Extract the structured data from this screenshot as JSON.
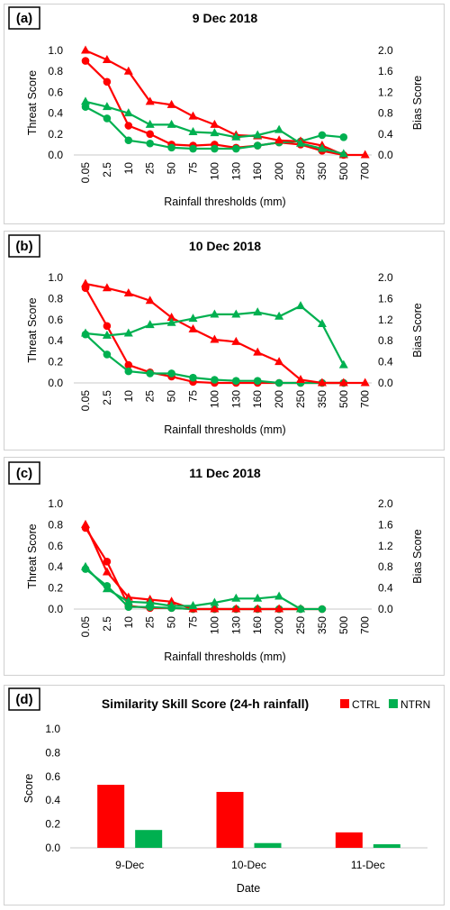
{
  "colors": {
    "ctrl": "#ff0000",
    "ntrn": "#00b050"
  },
  "chart_data": [
    {
      "panel": "(a)",
      "type": "line",
      "title": "9 Dec 2018",
      "xlabel": "Rainfall thresholds (mm)",
      "ylabel_left": "Threat Score",
      "ylabel_right": "Bias Score",
      "categories": [
        "0.05",
        "2.5",
        "10",
        "25",
        "50",
        "75",
        "100",
        "130",
        "160",
        "200",
        "250",
        "350",
        "500",
        "700"
      ],
      "ylim_left": [
        0,
        1.0
      ],
      "ylim_right": [
        0,
        2.0
      ],
      "yticks_left": [
        "0.0",
        "0.2",
        "0.4",
        "0.6",
        "0.8",
        "1.0"
      ],
      "yticks_right": [
        "0.0",
        "0.4",
        "0.8",
        "1.2",
        "1.6",
        "2.0"
      ],
      "series": [
        {
          "color": "ctrl",
          "marker": "circle",
          "axis": "left",
          "values": [
            0.9,
            0.7,
            0.28,
            0.2,
            0.1,
            0.09,
            0.1,
            0.07,
            0.09,
            0.12,
            0.1,
            0.04,
            0.0,
            null
          ]
        },
        {
          "color": "ntrn",
          "marker": "circle",
          "axis": "left",
          "values": [
            0.46,
            0.35,
            0.14,
            0.11,
            0.07,
            0.06,
            0.06,
            0.06,
            0.09,
            0.12,
            0.13,
            0.19,
            0.17,
            null
          ]
        },
        {
          "color": "ctrl",
          "marker": "triangle",
          "axis": "right",
          "values": [
            2.0,
            1.82,
            1.6,
            1.02,
            0.96,
            0.74,
            0.58,
            0.38,
            0.36,
            0.28,
            0.26,
            0.18,
            0.0,
            0.0
          ]
        },
        {
          "color": "ntrn",
          "marker": "triangle",
          "axis": "right",
          "values": [
            1.02,
            0.92,
            0.8,
            0.58,
            0.58,
            0.44,
            0.42,
            0.34,
            0.38,
            0.48,
            0.22,
            0.12,
            0.02,
            null
          ]
        }
      ]
    },
    {
      "panel": "(b)",
      "type": "line",
      "title": "10 Dec 2018",
      "xlabel": "Rainfall thresholds (mm)",
      "ylabel_left": "Threat Score",
      "ylabel_right": "Bias Score",
      "categories": [
        "0.05",
        "2.5",
        "10",
        "25",
        "50",
        "75",
        "100",
        "130",
        "160",
        "200",
        "250",
        "350",
        "500",
        "700"
      ],
      "ylim_left": [
        0,
        1.0
      ],
      "ylim_right": [
        0,
        2.0
      ],
      "yticks_left": [
        "0.0",
        "0.2",
        "0.4",
        "0.6",
        "0.8",
        "1.0"
      ],
      "yticks_right": [
        "0.0",
        "0.4",
        "0.8",
        "1.2",
        "1.6",
        "2.0"
      ],
      "series": [
        {
          "color": "ctrl",
          "marker": "circle",
          "axis": "left",
          "values": [
            0.9,
            0.54,
            0.17,
            0.1,
            0.06,
            0.01,
            0.0,
            0.0,
            0.0,
            0.0,
            0.0,
            0.0,
            0.0,
            null
          ]
        },
        {
          "color": "ntrn",
          "marker": "circle",
          "axis": "left",
          "values": [
            0.46,
            0.27,
            0.11,
            0.09,
            0.09,
            0.05,
            0.03,
            0.02,
            0.02,
            0.0,
            0.0,
            0.0,
            0.0,
            null
          ]
        },
        {
          "color": "ctrl",
          "marker": "triangle",
          "axis": "right",
          "values": [
            1.88,
            1.8,
            1.7,
            1.56,
            1.24,
            1.02,
            0.82,
            0.78,
            0.58,
            0.4,
            0.06,
            0.0,
            0.0,
            0.0
          ]
        },
        {
          "color": "ntrn",
          "marker": "triangle",
          "axis": "right",
          "values": [
            0.94,
            0.9,
            0.94,
            1.1,
            1.14,
            1.22,
            1.3,
            1.3,
            1.34,
            1.26,
            1.46,
            1.12,
            0.34,
            null
          ]
        }
      ]
    },
    {
      "panel": "(c)",
      "type": "line",
      "title": "11 Dec 2018",
      "xlabel": "Rainfall thresholds (mm)",
      "ylabel_left": "Threat Score",
      "ylabel_right": "Bias Score",
      "categories": [
        "0.05",
        "2.5",
        "10",
        "25",
        "50",
        "75",
        "100",
        "130",
        "160",
        "200",
        "250",
        "350",
        "500",
        "700"
      ],
      "ylim_left": [
        0,
        1.0
      ],
      "ylim_right": [
        0,
        2.0
      ],
      "yticks_left": [
        "0.0",
        "0.2",
        "0.4",
        "0.6",
        "0.8",
        "1.0"
      ],
      "yticks_right": [
        "0.0",
        "0.4",
        "0.8",
        "1.2",
        "1.6",
        "2.0"
      ],
      "series": [
        {
          "color": "ctrl",
          "marker": "circle",
          "axis": "left",
          "values": [
            0.77,
            0.45,
            0.03,
            0.01,
            0.01,
            0.0,
            0.0,
            0.0,
            0.0,
            0.0,
            0.0,
            0.0,
            null,
            null
          ]
        },
        {
          "color": "ntrn",
          "marker": "circle",
          "axis": "left",
          "values": [
            0.38,
            0.22,
            0.02,
            0.02,
            0.01,
            0.0,
            0.0,
            0.0,
            0.0,
            0.0,
            0.0,
            0.0,
            null,
            null
          ]
        },
        {
          "color": "ctrl",
          "marker": "triangle",
          "axis": "right",
          "values": [
            1.6,
            0.7,
            0.22,
            0.18,
            0.14,
            0.0,
            0.0,
            0.0,
            0.0,
            0.0,
            0.0,
            null,
            null,
            null
          ]
        },
        {
          "color": "ntrn",
          "marker": "triangle",
          "axis": "right",
          "values": [
            0.8,
            0.38,
            0.14,
            0.12,
            0.06,
            0.06,
            0.12,
            0.2,
            0.2,
            0.24,
            0.0,
            null,
            null,
            null
          ]
        }
      ]
    },
    {
      "panel": "(d)",
      "type": "bar",
      "title": "Similarity Skill Score (24-h rainfall)",
      "xlabel": "Date",
      "ylabel": "Score",
      "categories": [
        "9-Dec",
        "10-Dec",
        "11-Dec"
      ],
      "ylim": [
        0,
        1.0
      ],
      "yticks": [
        "0.0",
        "0.2",
        "0.4",
        "0.6",
        "0.8",
        "1.0"
      ],
      "legend_position": "top-right",
      "series": [
        {
          "name": "CTRL",
          "color": "ctrl",
          "values": [
            0.53,
            0.47,
            0.13
          ]
        },
        {
          "name": "NTRN",
          "color": "ntrn",
          "values": [
            0.15,
            0.04,
            0.03
          ]
        }
      ]
    }
  ]
}
